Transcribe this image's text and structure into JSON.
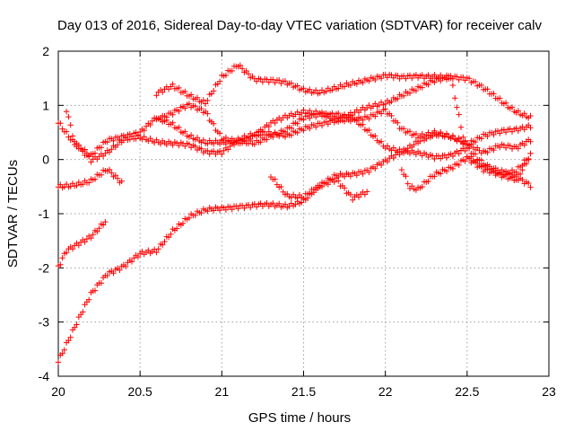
{
  "chart_data": {
    "type": "scatter",
    "title": "Day 013 of 2016, Sidereal Day-to-day VTEC variation (SDTVAR) for receiver calv",
    "xlabel": "GPS time / hours",
    "ylabel": "SDTVAR / TECUs",
    "xlim": [
      20,
      23
    ],
    "ylim": [
      -4,
      2
    ],
    "x_ticks": [
      20,
      20.5,
      21,
      21.5,
      22,
      22.5,
      23
    ],
    "x_tick_labels": [
      "20",
      "20.5",
      "21",
      "21.5",
      "22",
      "22.5",
      "23"
    ],
    "y_ticks": [
      -4,
      -3,
      -2,
      -1,
      0,
      1,
      2
    ],
    "y_tick_labels": [
      "-4",
      "-3",
      "-2",
      "-1",
      "0",
      "1",
      "2"
    ],
    "grid": true,
    "marker": "+",
    "color": "#ff0000",
    "series": [
      {
        "name": "s1",
        "x": [
          20.0,
          20.1,
          20.2,
          20.3,
          20.4,
          20.5,
          20.6,
          20.7,
          20.8,
          20.9,
          21.0,
          21.1,
          21.2,
          21.3,
          21.4,
          21.5,
          21.6,
          21.7,
          21.8,
          21.9,
          22.0,
          22.1,
          22.2,
          22.3,
          22.4,
          22.5,
          22.6,
          22.7,
          22.8,
          22.9
        ],
        "y": [
          -3.7,
          -3.1,
          -2.5,
          -2.1,
          -1.95,
          -1.75,
          -1.7,
          -1.3,
          -1.05,
          -0.95,
          -0.9,
          -0.85,
          -0.85,
          -0.85,
          -0.85,
          -0.75,
          -0.5,
          -0.3,
          -0.25,
          -0.2,
          -0.05,
          0.15,
          0.35,
          0.45,
          0.4,
          0.3,
          0.45,
          0.5,
          0.55,
          0.65
        ]
      },
      {
        "name": "s2",
        "x": [
          20.0,
          20.05,
          20.1,
          20.2,
          20.3,
          20.4,
          20.5,
          20.6,
          20.7,
          20.8,
          20.9,
          21.0,
          21.1,
          21.2,
          21.3,
          21.4,
          21.5,
          21.6,
          21.7,
          21.8,
          21.9,
          22.0,
          22.1,
          22.2,
          22.3,
          22.4,
          22.5,
          22.6,
          22.7,
          22.8,
          22.9
        ],
        "y": [
          -2.0,
          -1.7,
          -1.6,
          -1.4,
          -1.1,
          null,
          null,
          0.75,
          0.85,
          1.0,
          0.9,
          0.4,
          0.3,
          0.3,
          0.45,
          0.55,
          0.75,
          0.85,
          0.85,
          0.75,
          0.5,
          0.25,
          0.15,
          0.1,
          0.05,
          0.1,
          0.2,
          -0.1,
          -0.25,
          -0.2,
          0.1
        ]
      },
      {
        "name": "s3",
        "x": [
          20.0,
          20.1,
          20.2,
          20.3,
          20.4,
          20.5,
          20.6,
          20.7,
          20.8,
          20.9,
          21.0,
          21.1,
          21.2,
          21.3,
          21.4,
          21.5,
          21.6,
          21.7,
          21.8,
          21.9,
          22.0,
          22.1,
          22.2,
          22.3,
          22.4,
          22.5,
          22.6,
          22.7,
          22.8,
          22.9
        ],
        "y": [
          0.7,
          0.3,
          0.05,
          0.35,
          0.45,
          0.5,
          0.75,
          0.65,
          0.45,
          0.3,
          0.3,
          0.35,
          0.45,
          0.65,
          0.8,
          0.9,
          0.85,
          0.7,
          0.75,
          0.8,
          0.9,
          0.55,
          0.45,
          0.5,
          0.4,
          0.3,
          0.15,
          0.25,
          0.2,
          0.4
        ]
      },
      {
        "name": "s4",
        "x": [
          20.05,
          20.1,
          20.2,
          20.3,
          20.4,
          20.5,
          20.6,
          20.7,
          20.8,
          20.9,
          21.0,
          21.1,
          21.2,
          21.3,
          21.4,
          21.5,
          21.6,
          21.7,
          21.8,
          21.9,
          22.0,
          22.1,
          22.2,
          22.3,
          22.4,
          22.5,
          22.6,
          22.7,
          22.8,
          22.9
        ],
        "y": [
          0.9,
          0.3,
          0.0,
          0.15,
          0.35,
          0.4,
          0.35,
          0.3,
          0.25,
          0.15,
          0.15,
          0.35,
          0.45,
          0.5,
          0.45,
          0.55,
          0.65,
          0.75,
          0.85,
          0.95,
          1.05,
          1.2,
          1.3,
          1.45,
          1.55,
          1.5,
          1.3,
          1.1,
          0.9,
          0.75
        ]
      },
      {
        "name": "s5",
        "x": [
          20.0,
          20.1,
          20.2,
          20.3,
          20.4,
          20.5,
          20.6,
          20.7,
          20.8,
          20.9,
          21.0,
          21.1,
          21.2,
          21.3,
          21.4,
          21.5,
          21.6,
          21.7,
          21.8,
          21.9,
          22.0,
          22.1,
          22.2,
          22.3,
          22.4,
          22.5,
          22.6,
          22.7,
          22.8,
          22.9
        ],
        "y": [
          -0.5,
          -0.45,
          -0.4,
          -0.2,
          -0.45,
          null,
          1.2,
          1.35,
          1.2,
          1.05,
          1.5,
          1.75,
          1.5,
          1.45,
          1.4,
          1.3,
          1.25,
          1.3,
          1.4,
          1.5,
          1.55,
          1.5,
          1.55,
          1.55,
          1.5,
          0.05,
          -0.1,
          -0.2,
          -0.35,
          -0.5
        ]
      },
      {
        "name": "s6",
        "x": [
          21.3,
          21.4,
          21.5,
          21.6,
          21.7,
          21.8,
          21.9,
          22.0,
          22.1,
          22.15,
          22.2,
          22.3,
          22.4,
          22.5,
          22.6,
          22.7,
          22.8,
          22.9
        ],
        "y": [
          -0.3,
          -0.65,
          -0.7,
          -0.5,
          -0.35,
          -0.7,
          -0.6,
          null,
          -0.15,
          -0.5,
          -0.55,
          -0.3,
          -0.15,
          0.05,
          -0.2,
          -0.3,
          -0.35,
          0.15
        ]
      }
    ]
  }
}
